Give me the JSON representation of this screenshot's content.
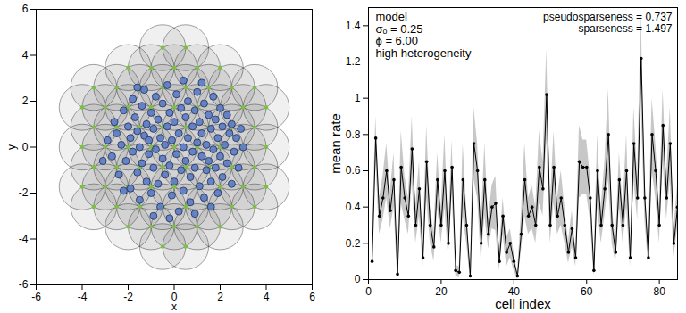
{
  "chart_data": [
    {
      "type": "scatter",
      "xlabel": "x",
      "ylabel": "y",
      "xlim": [
        -6,
        6
      ],
      "ylim": [
        -6,
        6
      ],
      "xticks": [
        -6,
        -4,
        -2,
        0,
        2,
        4,
        6
      ],
      "yticks": [
        -6,
        -4,
        -2,
        0,
        2,
        4,
        6
      ],
      "series": [
        {
          "marker": "field",
          "color": "#7ac143",
          "radius": 1,
          "x": [
            -0.5,
            0.5,
            -2,
            -1,
            0,
            1,
            2,
            -3.5,
            -2.5,
            -1.5,
            -0.5,
            0.5,
            1.5,
            2.5,
            3.5,
            -4,
            -3,
            -2,
            -1,
            0,
            1,
            2,
            3,
            4,
            -3.5,
            -2.5,
            -1.5,
            -0.5,
            0.5,
            1.5,
            2.5,
            3.5,
            -4,
            -3,
            -2,
            -1,
            0,
            1,
            2,
            3,
            4,
            -3.5,
            -2.5,
            -1.5,
            -0.5,
            0.5,
            1.5,
            2.5,
            3.5,
            -4,
            -3,
            -2,
            -1,
            0,
            1,
            2,
            3,
            4,
            -3.5,
            -2.5,
            -1.5,
            -0.5,
            0.5,
            1.5,
            2.5,
            3.5,
            -2,
            -1,
            0,
            1,
            2,
            -0.5,
            0.5
          ],
          "y": [
            4.33,
            4.33,
            3.464,
            3.464,
            3.464,
            3.464,
            3.464,
            2.598,
            2.598,
            2.598,
            2.598,
            2.598,
            2.598,
            2.598,
            2.598,
            1.732,
            1.732,
            1.732,
            1.732,
            1.732,
            1.732,
            1.732,
            1.732,
            1.732,
            0.866,
            0.866,
            0.866,
            0.866,
            0.866,
            0.866,
            0.866,
            0.866,
            0,
            0,
            0,
            0,
            0,
            0,
            0,
            0,
            0,
            -0.866,
            -0.866,
            -0.866,
            -0.866,
            -0.866,
            -0.866,
            -0.866,
            -0.866,
            -1.732,
            -1.732,
            -1.732,
            -1.732,
            -1.732,
            -1.732,
            -1.732,
            -1.732,
            -1.732,
            -2.598,
            -2.598,
            -2.598,
            -2.598,
            -2.598,
            -2.598,
            -2.598,
            -2.598,
            -3.464,
            -3.464,
            -3.464,
            -3.464,
            -3.464,
            -4.33,
            -4.33
          ]
        },
        {
          "marker": "circle",
          "color": "#5b7cc4",
          "x": [
            -2.9,
            -2.7,
            -2.6,
            -2.5,
            -2.4,
            -2.3,
            -2.2,
            -2.1,
            -2.0,
            -1.9,
            -1.9,
            -1.8,
            -1.8,
            -1.7,
            -1.6,
            -1.6,
            -1.5,
            -1.5,
            -1.4,
            -1.4,
            -1.3,
            -1.3,
            -1.2,
            -1.2,
            -1.1,
            -1.1,
            -1.0,
            -1.0,
            -0.9,
            -0.9,
            -0.8,
            -0.8,
            -0.7,
            -0.7,
            -0.6,
            -0.6,
            -0.5,
            -0.5,
            -0.4,
            -0.4,
            -0.3,
            -0.3,
            -0.2,
            -0.2,
            -0.1,
            -0.1,
            0.0,
            0.0,
            0.1,
            0.1,
            0.2,
            0.2,
            0.3,
            0.3,
            0.4,
            0.4,
            0.5,
            0.5,
            0.6,
            0.6,
            0.7,
            0.7,
            0.8,
            0.8,
            0.9,
            0.9,
            1.0,
            1.0,
            1.1,
            1.1,
            1.2,
            1.2,
            1.3,
            1.3,
            1.4,
            1.4,
            1.5,
            1.5,
            1.6,
            1.6,
            1.7,
            1.7,
            1.8,
            1.8,
            1.9,
            1.9,
            2.0,
            2.0,
            2.1,
            2.1,
            2.2,
            2.3,
            2.3,
            2.4,
            2.5,
            2.5,
            2.6,
            2.7,
            2.8,
            2.9,
            -2.2,
            -0.2,
            0.9,
            -1.6,
            0.4,
            1.2,
            -3.1,
            3.0,
            -0.9,
            1.6
          ],
          "y": [
            0.3,
            -0.4,
            1.1,
            0.6,
            -1.2,
            0.1,
            1.6,
            -0.6,
            0.9,
            -1.8,
            0.4,
            2.1,
            -0.2,
            1.3,
            -1.1,
            0.7,
            -2.3,
            0.0,
            1.8,
            -0.7,
            0.5,
            2.5,
            -1.5,
            1.0,
            -0.3,
            0.3,
            -2.0,
            1.5,
            -0.9,
            0.8,
            2.2,
            -0.1,
            -1.6,
            1.2,
            0.4,
            -2.6,
            -0.5,
            1.9,
            0.1,
            -1.2,
            2.7,
            0.9,
            -0.8,
            1.5,
            -2.1,
            0.3,
            -1.5,
            1.1,
            -0.3,
            2.3,
            -2.8,
            0.6,
            -1.0,
            1.7,
            0.0,
            -1.9,
            1.3,
            -0.6,
            2.0,
            0.4,
            -1.3,
            -2.4,
            0.9,
            -0.2,
            1.6,
            -0.9,
            0.2,
            2.4,
            -1.7,
            1.1,
            -0.4,
            0.6,
            -2.2,
            1.9,
            -1.0,
            0.1,
            1.4,
            -0.6,
            0.8,
            -1.5,
            2.2,
            -0.1,
            1.2,
            -0.9,
            0.4,
            -2.0,
            1.7,
            -0.4,
            0.9,
            -1.3,
            0.1,
            1.4,
            -0.7,
            0.6,
            -1.6,
            1.0,
            -0.2,
            0.4,
            -0.9,
            0.8,
            -1.9,
            -3.1,
            -2.9,
            2.6,
            2.9,
            2.8,
            -0.6,
            0.0,
            -3.0,
            -2.6
          ]
        }
      ]
    },
    {
      "type": "line",
      "xlabel": "cell index",
      "ylabel": "mean rate",
      "xlim": [
        0,
        85
      ],
      "ylim": [
        0,
        1.5
      ],
      "xticks": [
        0,
        20,
        40,
        60,
        80
      ],
      "yticks": [
        0,
        0.2,
        0.4,
        0.6,
        0.8,
        1,
        1.2,
        1.4
      ],
      "annotations": [
        [
          "model",
          "σₒ = 0.25",
          "ϕ = 6.00",
          "high heterogeneity"
        ],
        [
          "pseudosparseness = 0.737",
          "sparseness = 1.497"
        ]
      ],
      "x": [
        1,
        2,
        3,
        4,
        5,
        6,
        7,
        8,
        9,
        10,
        11,
        12,
        13,
        14,
        15,
        16,
        17,
        18,
        19,
        20,
        21,
        22,
        23,
        24,
        25,
        26,
        27,
        28,
        29,
        30,
        31,
        32,
        33,
        34,
        35,
        36,
        37,
        38,
        39,
        40,
        41,
        42,
        43,
        44,
        45,
        46,
        47,
        48,
        49,
        50,
        51,
        52,
        53,
        54,
        55,
        56,
        57,
        58,
        59,
        60,
        61,
        62,
        63,
        64,
        65,
        66,
        67,
        68,
        69,
        70,
        71,
        72,
        73,
        74,
        75,
        76,
        77,
        78,
        79,
        80,
        81,
        82,
        83,
        84,
        85
      ],
      "series": [
        {
          "color": "#000000",
          "marker": "dot",
          "values": [
            0.1,
            0.78,
            0.35,
            0.45,
            0.6,
            0.38,
            0.55,
            0.03,
            0.62,
            0.45,
            0.35,
            0.72,
            0.3,
            0.5,
            0.12,
            0.65,
            0.3,
            0.18,
            0.55,
            0.3,
            0.6,
            0.2,
            0.62,
            0.05,
            0.04,
            0.55,
            0.3,
            0.02,
            0.75,
            0.6,
            0.2,
            0.55,
            0.25,
            0.4,
            0.42,
            0.1,
            0.35,
            0.15,
            0.2,
            0.1,
            0.02,
            0.25,
            0.55,
            0.35,
            0.4,
            0.3,
            0.62,
            0.5,
            1.02,
            0.3,
            0.62,
            0.35,
            0.45,
            0.3,
            0.15,
            0.28,
            0.12,
            0.65,
            0.62,
            0.62,
            0.45,
            0.05,
            0.6,
            0.3,
            0.5,
            0.8,
            0.3,
            0.15,
            0.55,
            0.3,
            0.6,
            0.12,
            0.75,
            0.45,
            1.22,
            0.45,
            0.12,
            0.8,
            0.6,
            0.3,
            0.85,
            0.45,
            0.75,
            0.2,
            0.4
          ],
          "errors": [
            0.08,
            0.12,
            0.1,
            0.12,
            0.15,
            0.1,
            0.15,
            0.03,
            0.2,
            0.12,
            0.1,
            0.18,
            0.1,
            0.15,
            0.05,
            0.2,
            0.1,
            0.08,
            0.15,
            0.1,
            0.2,
            0.08,
            0.15,
            0.03,
            0.03,
            0.2,
            0.1,
            0.02,
            0.2,
            0.15,
            0.1,
            0.2,
            0.08,
            0.12,
            0.15,
            0.05,
            0.1,
            0.08,
            0.08,
            0.05,
            0.02,
            0.1,
            0.2,
            0.1,
            0.12,
            0.1,
            0.2,
            0.15,
            0.25,
            0.1,
            0.2,
            0.1,
            0.15,
            0.1,
            0.06,
            0.1,
            0.05,
            0.2,
            0.15,
            0.15,
            0.12,
            0.03,
            0.2,
            0.1,
            0.15,
            0.25,
            0.1,
            0.06,
            0.15,
            0.1,
            0.2,
            0.05,
            0.2,
            0.12,
            0.25,
            0.12,
            0.05,
            0.2,
            0.15,
            0.1,
            0.2,
            0.12,
            0.2,
            0.08,
            0.12
          ]
        }
      ]
    }
  ]
}
